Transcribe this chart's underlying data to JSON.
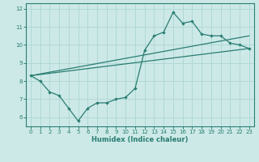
{
  "xlabel": "Humidex (Indice chaleur)",
  "xlim": [
    -0.5,
    23.5
  ],
  "ylim": [
    5.5,
    12.3
  ],
  "xticks": [
    0,
    1,
    2,
    3,
    4,
    5,
    6,
    7,
    8,
    9,
    10,
    11,
    12,
    13,
    14,
    15,
    16,
    17,
    18,
    19,
    20,
    21,
    22,
    23
  ],
  "yticks": [
    6,
    7,
    8,
    9,
    10,
    11,
    12
  ],
  "background_color": "#cce9e7",
  "line_color": "#2a7d72",
  "grid_color": "#b0d8d5",
  "line1_x": [
    0,
    1,
    2,
    3,
    4,
    5,
    6,
    7,
    8,
    9,
    10,
    11,
    12,
    13,
    14,
    15,
    16,
    17,
    18,
    19,
    20,
    21,
    22,
    23
  ],
  "line1_y": [
    8.3,
    8.0,
    7.4,
    7.2,
    6.5,
    5.8,
    6.5,
    6.8,
    6.8,
    7.0,
    7.1,
    7.6,
    9.7,
    10.5,
    10.7,
    11.8,
    11.2,
    11.3,
    10.6,
    10.5,
    10.5,
    10.1,
    10.0,
    9.8
  ],
  "line2_x": [
    0,
    23
  ],
  "line2_y": [
    8.3,
    9.8
  ],
  "line3_x": [
    0,
    23
  ],
  "line3_y": [
    8.3,
    10.5
  ]
}
